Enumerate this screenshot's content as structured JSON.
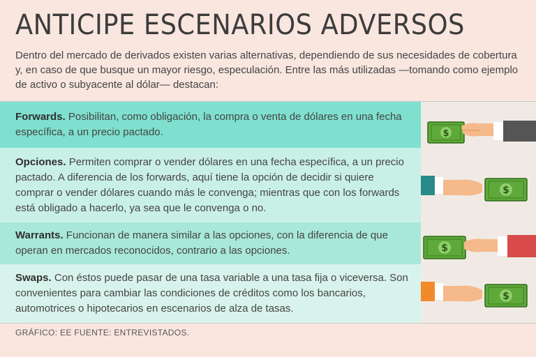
{
  "title": "ANTICIPE ESCENARIOS ADVERSOS",
  "intro": "Dentro del mercado de derivados existen varias alternativas, dependiendo de sus necesidades de cobertura y, en caso de que busque un mayor riesgo, especulación. Entre las más utilizadas —tomando como ejemplo de activo o subyacente al dólar— destacan:",
  "items": [
    {
      "term": "Forwards.",
      "text": " Posibilitan, como obligación, la compra o venta de dólares en una fecha específica, a un precio pactado.",
      "color": "#7fe0cf"
    },
    {
      "term": "Opciones.",
      "text": " Permiten comprar o vender dólares en una fecha específica, a un precio pactado. A diferencia de los forwards, aquí tiene la opción de decidir si quiere comprar o vender dólares cuando más le convenga; mientras que con los forwards está obligado a hacerlo, ya sea que le convenga o no.",
      "color": "#c9f0e6"
    },
    {
      "term": "Warrants.",
      "text": " Funcionan de manera similar a las opciones, con la diferencia de que operan en mercados reconocidos, contrario a las opciones.",
      "color": "#a8e8d9"
    },
    {
      "term": "Swaps.",
      "text": " Con éstos puede pasar de una tasa variable a una tasa fija o viceversa. Son convenientes para cambiar las condiciones de créditos como los bancarios, automotrices o hipotecarios en escenarios de alza de tasas.",
      "color": "#d8f3ec"
    }
  ],
  "illustrations": [
    {
      "icon": "banknote-handoff-icon",
      "sleeve": "#555555",
      "note_side": "left"
    },
    {
      "icon": "banknote-handoff-icon",
      "sleeve": "#2a8a8a",
      "note_side": "right"
    },
    {
      "icon": "banknote-handoff-icon",
      "sleeve": "#d94a4a",
      "note_side": "left"
    },
    {
      "icon": "banknote-handoff-icon",
      "sleeve": "#f08a2a",
      "note_side": "right"
    }
  ],
  "footer": "GRÁFICO: EE  FUENTE: ENTREVISTADOS."
}
